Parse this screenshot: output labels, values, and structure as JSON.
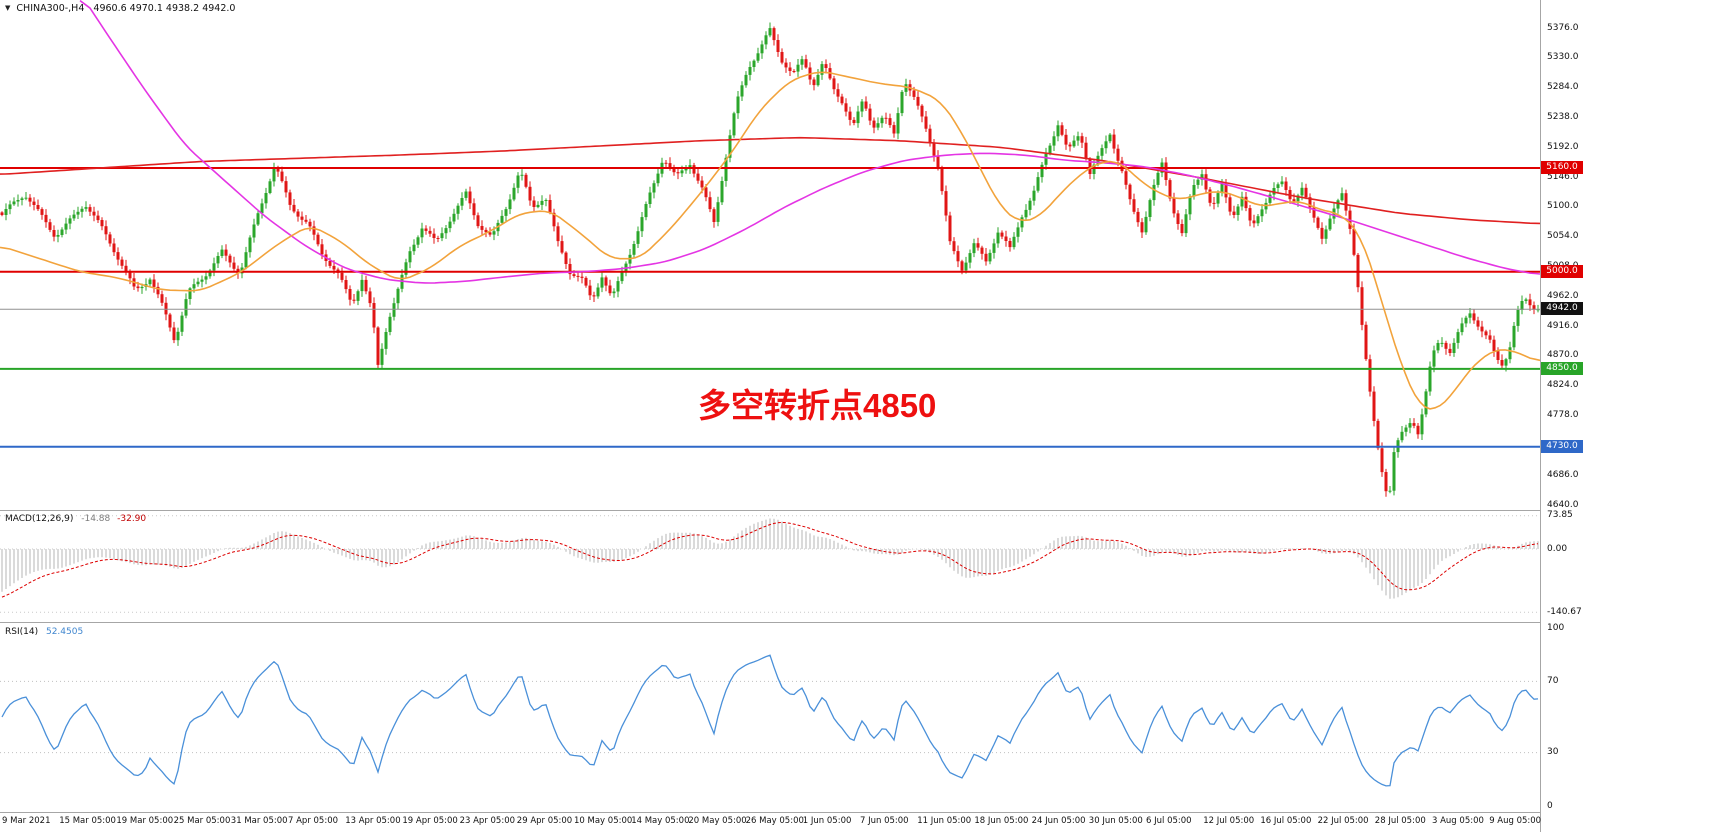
{
  "legend": {
    "symbol_tf": "CHINA300-,H4",
    "ohlc_text": "4960.6 4970.1 4938.2 4942.0"
  },
  "chart_data": {
    "type": "candlestick",
    "symbol": "CHINA300-",
    "timeframe": "H4",
    "last": {
      "open": 4960.6,
      "high": 4970.1,
      "low": 4938.2,
      "close": 4942.0
    },
    "annotation": {
      "text": "多空转折点4850",
      "color": "#ee1010",
      "price_ref": 4850
    },
    "colors": {
      "up": "#2ba62b",
      "down": "#e01616",
      "background": "#ffffff"
    },
    "price_axis": {
      "min": 4640,
      "max": 5376,
      "tick_step": 46,
      "labels": [
        "5376.0",
        "5330.0",
        "5284.0",
        "5238.0",
        "5192.0",
        "5146.0",
        "5100.0",
        "5054.0",
        "5008.0",
        "4962.0",
        "4916.0",
        "4870.0",
        "4824.0",
        "4778.0",
        "4732.0",
        "4686.0",
        "4640.0"
      ]
    },
    "time_axis": {
      "labels": [
        "9 Mar 2021",
        "15 Mar 05:00",
        "19 Mar 05:00",
        "25 Mar 05:00",
        "31 Mar 05:00",
        "7 Apr 05:00",
        "13 Apr 05:00",
        "19 Apr 05:00",
        "23 Apr 05:00",
        "29 Apr 05:00",
        "10 May 05:00",
        "14 May 05:00",
        "20 May 05:00",
        "26 May 05:00",
        "1 Jun 05:00",
        "7 Jun 05:00",
        "11 Jun 05:00",
        "18 Jun 05:00",
        "24 Jun 05:00",
        "30 Jun 05:00",
        "6 Jul 05:00",
        "12 Jul 05:00",
        "16 Jul 05:00",
        "22 Jul 05:00",
        "28 Jul 05:00",
        "3 Aug 05:00",
        "9 Aug 05:00"
      ]
    },
    "levels": [
      {
        "label": "5160.0",
        "price": 5160.0,
        "color": "#e00000"
      },
      {
        "label": "5000.0",
        "price": 5000.0,
        "color": "#e00000"
      },
      {
        "label": "4850.0",
        "price": 4850.0,
        "color": "#28a428"
      },
      {
        "label": "4730.0",
        "price": 4730.0,
        "color": "#2f68c8"
      }
    ],
    "current_price": {
      "label": "4942.0",
      "price": 4942.0,
      "line_color": "#909090",
      "badge_bg": "#111111"
    },
    "price_path": [
      [
        0,
        5085
      ],
      [
        25,
        5115
      ],
      [
        55,
        5060
      ],
      [
        85,
        5105
      ],
      [
        115,
        5028
      ],
      [
        135,
        4975
      ],
      [
        150,
        4995
      ],
      [
        163,
        4945
      ],
      [
        175,
        4890
      ],
      [
        188,
        4962
      ],
      [
        205,
        4995
      ],
      [
        222,
        5035
      ],
      [
        240,
        5000
      ],
      [
        258,
        5085
      ],
      [
        275,
        5160
      ],
      [
        290,
        5105
      ],
      [
        308,
        5078
      ],
      [
        322,
        5030
      ],
      [
        338,
        4992
      ],
      [
        352,
        4945
      ],
      [
        362,
        4988
      ],
      [
        372,
        4940
      ],
      [
        378,
        4858
      ],
      [
        388,
        4930
      ],
      [
        398,
        4975
      ],
      [
        410,
        5030
      ],
      [
        422,
        5065
      ],
      [
        436,
        5040
      ],
      [
        452,
        5088
      ],
      [
        466,
        5125
      ],
      [
        478,
        5078
      ],
      [
        492,
        5050
      ],
      [
        507,
        5098
      ],
      [
        520,
        5152
      ],
      [
        532,
        5100
      ],
      [
        545,
        5122
      ],
      [
        558,
        5048
      ],
      [
        570,
        5000
      ],
      [
        582,
        4983
      ],
      [
        592,
        4950
      ],
      [
        602,
        4992
      ],
      [
        612,
        4958
      ],
      [
        624,
        5012
      ],
      [
        637,
        5062
      ],
      [
        650,
        5120
      ],
      [
        663,
        5172
      ],
      [
        676,
        5140
      ],
      [
        690,
        5168
      ],
      [
        703,
        5128
      ],
      [
        714,
        5082
      ],
      [
        726,
        5180
      ],
      [
        736,
        5255
      ],
      [
        748,
        5310
      ],
      [
        760,
        5338
      ],
      [
        770,
        5372
      ],
      [
        782,
        5330
      ],
      [
        793,
        5308
      ],
      [
        803,
        5332
      ],
      [
        813,
        5288
      ],
      [
        823,
        5318
      ],
      [
        833,
        5278
      ],
      [
        843,
        5258
      ],
      [
        853,
        5222
      ],
      [
        863,
        5268
      ],
      [
        873,
        5230
      ],
      [
        884,
        5242
      ],
      [
        894,
        5212
      ],
      [
        904,
        5295
      ],
      [
        914,
        5262
      ],
      [
        926,
        5218
      ],
      [
        938,
        5165
      ],
      [
        950,
        5048
      ],
      [
        962,
        5010
      ],
      [
        974,
        5042
      ],
      [
        986,
        5012
      ],
      [
        998,
        5058
      ],
      [
        1010,
        5032
      ],
      [
        1022,
        5090
      ],
      [
        1034,
        5128
      ],
      [
        1046,
        5185
      ],
      [
        1058,
        5228
      ],
      [
        1068,
        5180
      ],
      [
        1080,
        5210
      ],
      [
        1090,
        5150
      ],
      [
        1100,
        5182
      ],
      [
        1110,
        5218
      ],
      [
        1122,
        5160
      ],
      [
        1132,
        5098
      ],
      [
        1142,
        5062
      ],
      [
        1152,
        5120
      ],
      [
        1162,
        5160
      ],
      [
        1172,
        5100
      ],
      [
        1182,
        5062
      ],
      [
        1192,
        5130
      ],
      [
        1202,
        5158
      ],
      [
        1212,
        5100
      ],
      [
        1222,
        5130
      ],
      [
        1232,
        5080
      ],
      [
        1242,
        5112
      ],
      [
        1252,
        5062
      ],
      [
        1262,
        5100
      ],
      [
        1272,
        5132
      ],
      [
        1282,
        5140
      ],
      [
        1292,
        5110
      ],
      [
        1302,
        5130
      ],
      [
        1312,
        5082
      ],
      [
        1322,
        5048
      ],
      [
        1332,
        5090
      ],
      [
        1342,
        5118
      ],
      [
        1352,
        5058
      ],
      [
        1358,
        4985
      ],
      [
        1364,
        4895
      ],
      [
        1370,
        4815
      ],
      [
        1376,
        4745
      ],
      [
        1381,
        4700
      ],
      [
        1385,
        4668
      ],
      [
        1389,
        4648
      ],
      [
        1394,
        4718
      ],
      [
        1400,
        4740
      ],
      [
        1406,
        4752
      ],
      [
        1412,
        4768
      ],
      [
        1418,
        4752
      ],
      [
        1424,
        4798
      ],
      [
        1432,
        4872
      ],
      [
        1440,
        4900
      ],
      [
        1450,
        4882
      ],
      [
        1460,
        4912
      ],
      [
        1470,
        4932
      ],
      [
        1480,
        4910
      ],
      [
        1490,
        4888
      ],
      [
        1496,
        4862
      ],
      [
        1503,
        4855
      ],
      [
        1510,
        4890
      ],
      [
        1516,
        4938
      ],
      [
        1524,
        4962
      ],
      [
        1532,
        4948
      ],
      [
        1540,
        4942
      ]
    ],
    "moving_averages": [
      {
        "name": "slow-red-ma",
        "color": "#e02020",
        "points": [
          [
            0,
            5150
          ],
          [
            100,
            5160
          ],
          [
            200,
            5170
          ],
          [
            300,
            5175
          ],
          [
            400,
            5180
          ],
          [
            500,
            5186
          ],
          [
            600,
            5194
          ],
          [
            700,
            5202
          ],
          [
            800,
            5207
          ],
          [
            900,
            5202
          ],
          [
            1000,
            5192
          ],
          [
            1100,
            5172
          ],
          [
            1200,
            5145
          ],
          [
            1300,
            5115
          ],
          [
            1400,
            5090
          ],
          [
            1470,
            5080
          ],
          [
            1540,
            5074
          ]
        ]
      },
      {
        "name": "medium-magenta-ma",
        "color": "#e435e4",
        "points": [
          [
            80,
            5430
          ],
          [
            110,
            5360
          ],
          [
            145,
            5280
          ],
          [
            185,
            5195
          ],
          [
            225,
            5140
          ],
          [
            265,
            5085
          ],
          [
            305,
            5040
          ],
          [
            345,
            5005
          ],
          [
            385,
            4988
          ],
          [
            425,
            4982
          ],
          [
            465,
            4985
          ],
          [
            505,
            4992
          ],
          [
            545,
            4998
          ],
          [
            585,
            5000
          ],
          [
            625,
            5005
          ],
          [
            665,
            5015
          ],
          [
            705,
            5035
          ],
          [
            745,
            5065
          ],
          [
            785,
            5100
          ],
          [
            825,
            5130
          ],
          [
            865,
            5155
          ],
          [
            905,
            5172
          ],
          [
            945,
            5180
          ],
          [
            985,
            5183
          ],
          [
            1025,
            5180
          ],
          [
            1065,
            5172
          ],
          [
            1105,
            5168
          ],
          [
            1145,
            5162
          ],
          [
            1185,
            5150
          ],
          [
            1225,
            5135
          ],
          [
            1265,
            5118
          ],
          [
            1305,
            5100
          ],
          [
            1345,
            5082
          ],
          [
            1385,
            5062
          ],
          [
            1425,
            5042
          ],
          [
            1465,
            5022
          ],
          [
            1505,
            5005
          ],
          [
            1540,
            4995
          ]
        ]
      },
      {
        "name": "fast-orange-ma",
        "color": "#f2a33c",
        "points": [
          [
            0,
            5040
          ],
          [
            40,
            5020
          ],
          [
            80,
            5000
          ],
          [
            120,
            4990
          ],
          [
            160,
            4972
          ],
          [
            200,
            4970
          ],
          [
            240,
            4998
          ],
          [
            280,
            5045
          ],
          [
            310,
            5072
          ],
          [
            340,
            5048
          ],
          [
            370,
            5010
          ],
          [
            400,
            4985
          ],
          [
            430,
            5005
          ],
          [
            460,
            5040
          ],
          [
            490,
            5062
          ],
          [
            520,
            5090
          ],
          [
            550,
            5095
          ],
          [
            580,
            5060
          ],
          [
            610,
            5020
          ],
          [
            640,
            5020
          ],
          [
            670,
            5065
          ],
          [
            700,
            5120
          ],
          [
            730,
            5180
          ],
          [
            760,
            5250
          ],
          [
            790,
            5295
          ],
          [
            820,
            5310
          ],
          [
            850,
            5300
          ],
          [
            880,
            5290
          ],
          [
            910,
            5285
          ],
          [
            940,
            5265
          ],
          [
            960,
            5220
          ],
          [
            980,
            5160
          ],
          [
            1000,
            5100
          ],
          [
            1020,
            5075
          ],
          [
            1040,
            5085
          ],
          [
            1060,
            5120
          ],
          [
            1080,
            5150
          ],
          [
            1100,
            5170
          ],
          [
            1120,
            5170
          ],
          [
            1140,
            5140
          ],
          [
            1160,
            5120
          ],
          [
            1180,
            5110
          ],
          [
            1200,
            5120
          ],
          [
            1220,
            5125
          ],
          [
            1240,
            5115
          ],
          [
            1260,
            5100
          ],
          [
            1280,
            5105
          ],
          [
            1300,
            5110
          ],
          [
            1320,
            5095
          ],
          [
            1340,
            5090
          ],
          [
            1360,
            5060
          ],
          [
            1375,
            4990
          ],
          [
            1390,
            4910
          ],
          [
            1405,
            4840
          ],
          [
            1420,
            4790
          ],
          [
            1435,
            4785
          ],
          [
            1450,
            4805
          ],
          [
            1465,
            4840
          ],
          [
            1480,
            4865
          ],
          [
            1495,
            4880
          ],
          [
            1510,
            4880
          ],
          [
            1525,
            4870
          ],
          [
            1540,
            4860
          ]
        ]
      }
    ],
    "indicators": [
      {
        "type": "MACD",
        "label": "MACD(12,26,9)",
        "values": [
          "-14.88",
          "-32.90"
        ],
        "params": {
          "fast": 12,
          "slow": 26,
          "signal": 9
        },
        "axis_labels": [
          "73.85",
          "0.00",
          "-140.67"
        ],
        "histogram_color": "#b5b5b5",
        "signal_color": "#dd0000"
      },
      {
        "type": "RSI",
        "label": "RSI(14)",
        "value": "52.4505",
        "params": {
          "period": 14
        },
        "axis_labels": [
          "100",
          "70",
          "30",
          "0"
        ],
        "levels": [
          70,
          30
        ],
        "line_color": "#4a90d9"
      }
    ]
  }
}
